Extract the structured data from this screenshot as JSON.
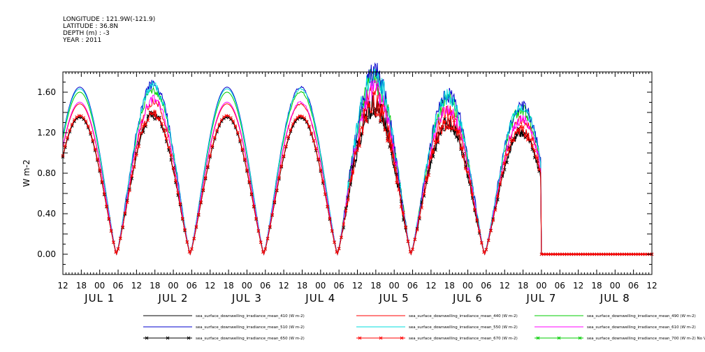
{
  "header": {
    "lines": [
      "LONGITUDE : 121.9W(-121.9)",
      "LATITUDE : 36.8N",
      "DEPTH (m) : -3",
      "YEAR : 2011"
    ]
  },
  "chart_data": {
    "type": "line",
    "title": "",
    "ylabel": "W m-2",
    "xlabel": "",
    "xlim": [
      "2011-06-30T12:00",
      "2011-07-08T12:00"
    ],
    "ylim": [
      -0.2,
      1.8
    ],
    "y_ticks": [
      "0.00",
      "0.40",
      "0.80",
      "1.20",
      "1.60"
    ],
    "y_tick_values": [
      0.0,
      0.4,
      0.8,
      1.2,
      1.6
    ],
    "x_ticks": [
      "12",
      "18",
      "00",
      "06",
      "12",
      "18",
      "00",
      "06",
      "12",
      "18",
      "00",
      "06",
      "12",
      "18",
      "00",
      "06",
      "12",
      "18",
      "00",
      "06",
      "12",
      "18",
      "00",
      "06",
      "12",
      "18",
      "00",
      "06",
      "12",
      "18",
      "00",
      "06",
      "12"
    ],
    "date_labels": [
      "JUL  1",
      "JUL  2",
      "JUL  3",
      "JUL  4",
      "JUL  5",
      "JUL  6",
      "JUL  7",
      "JUL  8"
    ],
    "grid": false,
    "legend_position": "bottom",
    "daily_peaks_510nm": [
      1.65,
      1.68,
      1.65,
      1.65,
      1.78,
      1.57,
      1.47
    ],
    "series": [
      {
        "name": "sea_surface_downwelling_irradiance_mean_410 (W m-2)",
        "color": "#000000",
        "marker": "none",
        "scale": 0.82
      },
      {
        "name": "sea_surface_downwelling_irradiance_mean_440 (W m-2)",
        "color": "#ff0000",
        "marker": "none",
        "scale": 0.9
      },
      {
        "name": "sea_surface_downwelling_irradiance_mean_490 (W m-2)",
        "color": "#00cc00",
        "marker": "none",
        "scale": 0.97
      },
      {
        "name": "sea_surface_downwelling_irradiance_mean_510 (W m-2)",
        "color": "#0000cc",
        "marker": "none",
        "scale": 1.0
      },
      {
        "name": "sea_surface_downwelling_irradiance_mean_550 (W m-2)",
        "color": "#00dddd",
        "marker": "none",
        "scale": 0.99
      },
      {
        "name": "sea_surface_downwelling_irradiance_mean_610 (W m-2)",
        "color": "#ff00ff",
        "marker": "none",
        "scale": 0.91
      },
      {
        "name": "sea_surface_downwelling_irradiance_mean_650 (W m-2)",
        "color": "#000000",
        "marker": "x",
        "scale": 0.82
      },
      {
        "name": "sea_surface_downwelling_irradiance_mean_670 (W m-2)",
        "color": "#ff0000",
        "marker": "x",
        "scale": 0.83
      },
      {
        "name": "sea_surface_downwelling_irradiance_mean_700 (W m-2) No Valid Data",
        "color": "#00cc00",
        "marker": "x",
        "scale": 0
      }
    ]
  }
}
